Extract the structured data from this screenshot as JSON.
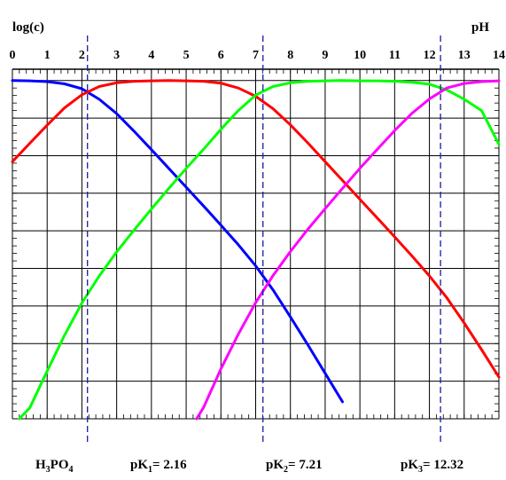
{
  "chart_data": {
    "type": "line",
    "ylabel": "log(c)",
    "xlabel": "pH",
    "xlim": [
      0,
      14
    ],
    "ylim": [
      -9,
      0.3
    ],
    "x_ticks": [
      "0",
      "1",
      "2",
      "3",
      "4",
      "5",
      "6",
      "7",
      "8",
      "9",
      "10",
      "11",
      "12",
      "13",
      "14"
    ],
    "grid": true,
    "compound_label": {
      "main": "H",
      "sub1": "3",
      "mid": "PO",
      "sub2": "4"
    },
    "pk_lines": [
      {
        "pre": "pK",
        "sub": "1",
        "value_text": "= 2.16",
        "x": 2.16
      },
      {
        "pre": "pK",
        "sub": "2",
        "value_text": "= 7.21",
        "x": 7.21
      },
      {
        "pre": "pK",
        "sub": "3",
        "value_text": "= 12.32",
        "x": 12.32
      }
    ],
    "series": [
      {
        "color": "#0000ff",
        "x": [
          0,
          0.5,
          1,
          1.5,
          2,
          2.5,
          3,
          3.5,
          4,
          4.5,
          5,
          5.5,
          6,
          6.5,
          7,
          7.5,
          8,
          8.5,
          9,
          9.5
        ],
        "y": [
          0,
          -0.01,
          -0.03,
          -0.09,
          -0.22,
          -0.5,
          -0.88,
          -1.35,
          -1.84,
          -2.34,
          -2.84,
          -3.34,
          -3.85,
          -4.37,
          -4.93,
          -5.57,
          -6.29,
          -7.03,
          -7.79,
          -8.55
        ]
      },
      {
        "color": "#ff0000",
        "x": [
          0,
          0.5,
          1,
          1.5,
          2,
          2.5,
          3,
          3.5,
          4,
          4.5,
          5,
          5.5,
          6,
          6.5,
          7,
          7.5,
          8,
          8.5,
          9,
          9.5,
          10,
          10.5,
          11,
          11.5,
          12,
          12.5,
          13,
          13.5,
          14
        ],
        "y": [
          -2.16,
          -1.67,
          -1.19,
          -0.73,
          -0.38,
          -0.16,
          -0.06,
          -0.02,
          -0.01,
          0,
          -0.01,
          -0.02,
          -0.07,
          -0.2,
          -0.42,
          -0.75,
          -1.18,
          -1.66,
          -2.16,
          -2.66,
          -3.16,
          -3.66,
          -4.16,
          -4.67,
          -5.2,
          -5.78,
          -6.45,
          -7.16,
          -7.89
        ]
      },
      {
        "color": "#00ff00",
        "x": [
          0.2,
          0.5,
          1,
          1.5,
          2,
          2.5,
          3,
          3.5,
          4,
          4.5,
          5,
          5.5,
          6,
          6.5,
          7,
          7.5,
          8,
          8.5,
          9,
          9.5,
          10,
          10.5,
          11,
          11.5,
          12,
          12.5,
          13,
          13.5,
          14
        ],
        "y": [
          -9,
          -8.71,
          -7.73,
          -6.78,
          -5.92,
          -5.2,
          -4.56,
          -3.98,
          -3.42,
          -2.87,
          -2.34,
          -1.83,
          -1.3,
          -0.8,
          -0.39,
          -0.16,
          -0.06,
          -0.02,
          -0.01,
          0,
          -0.01,
          -0.01,
          -0.02,
          -0.05,
          -0.1,
          -0.25,
          -0.5,
          -0.8,
          -1.7
        ]
      },
      {
        "color": "#ff00ff",
        "x": [
          5.3,
          5.5,
          6,
          6.5,
          7,
          7.5,
          8,
          8.5,
          9,
          9.5,
          10,
          10.5,
          11,
          11.5,
          12,
          12.5,
          13,
          13.5,
          14
        ],
        "y": [
          -9,
          -8.7,
          -7.67,
          -6.75,
          -5.91,
          -5.19,
          -4.55,
          -3.96,
          -3.41,
          -2.87,
          -2.34,
          -1.83,
          -1.33,
          -0.87,
          -0.49,
          -0.2,
          -0.08,
          -0.03,
          -0.01
        ]
      }
    ]
  }
}
